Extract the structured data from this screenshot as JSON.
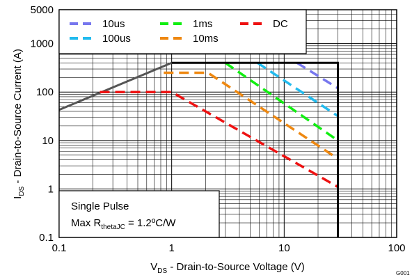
{
  "chart_data": {
    "type": "line",
    "x_scale": "log",
    "y_scale": "log",
    "xlim": [
      0.1,
      100
    ],
    "ylim": [
      0.1,
      5000
    ],
    "xlabel": {
      "main": "V",
      "sub": "DS",
      "rest": " - Drain-to-Source Voltage (V)"
    },
    "ylabel": {
      "main": "I",
      "sub": "DS",
      "rest": " - Drain-to-Source Current (A)"
    },
    "x_ticks": [
      {
        "value": 0.1,
        "label": "0.1"
      },
      {
        "value": 1,
        "label": "1"
      },
      {
        "value": 10,
        "label": "10"
      },
      {
        "value": 100,
        "label": "100"
      }
    ],
    "y_ticks": [
      {
        "value": 0.1,
        "label": "0.1"
      },
      {
        "value": 1,
        "label": "1"
      },
      {
        "value": 10,
        "label": "10"
      },
      {
        "value": 100,
        "label": "100"
      },
      {
        "value": 1000,
        "label": "1000"
      },
      {
        "value": 5000,
        "label": "5000"
      }
    ],
    "grid": "minor",
    "legend_position": "top-left",
    "boundary": {
      "color": "#000000",
      "points": [
        [
          1.0,
          400
        ],
        [
          30,
          400
        ],
        [
          30,
          0.1
        ]
      ]
    },
    "rds_line": {
      "color": "#555555",
      "points": [
        [
          0.1,
          43
        ],
        [
          1.0,
          400
        ]
      ]
    },
    "series": [
      {
        "name": "10us",
        "color": "#7777ee",
        "points": [
          [
            13,
            400
          ],
          [
            30,
            120
          ]
        ]
      },
      {
        "name": "100us",
        "color": "#22bbee",
        "points": [
          [
            5.8,
            400
          ],
          [
            30,
            32
          ]
        ]
      },
      {
        "name": "1ms",
        "color": "#11ee11",
        "points": [
          [
            3.0,
            400
          ],
          [
            30,
            10
          ]
        ]
      },
      {
        "name": "10ms",
        "color": "#ee8811",
        "points": [
          [
            0.85,
            250
          ],
          [
            2.1,
            250
          ],
          [
            30,
            4.2
          ]
        ]
      },
      {
        "name": "DC",
        "color": "#ee1111",
        "points": [
          [
            0.23,
            100
          ],
          [
            1.0,
            100
          ],
          [
            30,
            1.1
          ]
        ]
      }
    ],
    "annotation": {
      "line1": "Single Pulse",
      "line2_prefix": "Max R",
      "line2_sub": "thetaJC",
      "line2_value": " = 1.2ºC/W"
    },
    "figure_id": "G001"
  }
}
